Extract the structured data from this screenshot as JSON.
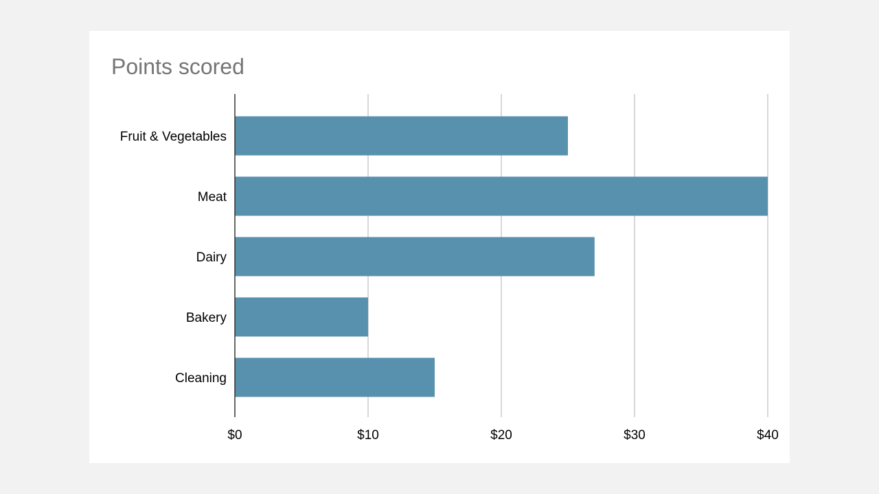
{
  "chart_data": {
    "type": "bar",
    "orientation": "horizontal",
    "title": "Points scored",
    "categories": [
      "Fruit & Vegetables",
      "Meat",
      "Dairy",
      "Bakery",
      "Cleaning"
    ],
    "values": [
      25,
      40,
      27,
      10,
      15
    ],
    "xlim": [
      0,
      40
    ],
    "xticks": [
      0,
      10,
      20,
      30,
      40
    ],
    "xtick_labels": [
      "$0",
      "$10",
      "$20",
      "$30",
      "$40"
    ],
    "xlabel": "",
    "ylabel": "",
    "grid": "vertical",
    "legend": "none",
    "bar_color": "#5891ad"
  },
  "colors": {
    "background": "#f2f2f2",
    "card": "#ffffff",
    "title": "#757575",
    "gridline": "#cccccc",
    "axis": "#333333"
  }
}
